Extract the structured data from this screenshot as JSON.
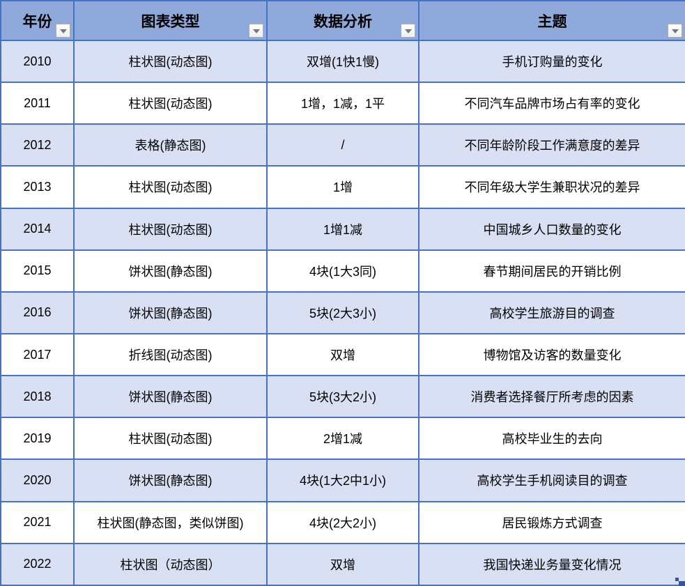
{
  "table": {
    "columns": [
      {
        "label": "年份"
      },
      {
        "label": "图表类型"
      },
      {
        "label": "数据分析"
      },
      {
        "label": "主题"
      }
    ],
    "rows": [
      {
        "year": "2010",
        "chart_type": "柱状图(动态图)",
        "analysis": "双增(1快1慢)",
        "topic": "手机订购量的变化"
      },
      {
        "year": "2011",
        "chart_type": "柱状图(动态图)",
        "analysis": "1增，1减，1平",
        "topic": "不同汽车品牌市场占有率的变化"
      },
      {
        "year": "2012",
        "chart_type": "表格(静态图)",
        "analysis": "/",
        "topic": "不同年龄阶段工作满意度的差异"
      },
      {
        "year": "2013",
        "chart_type": "柱状图(动态图)",
        "analysis": "1增",
        "topic": "不同年级大学生兼职状况的差异"
      },
      {
        "year": "2014",
        "chart_type": "柱状图(动态图)",
        "analysis": "1增1减",
        "topic": "中国城乡人口数量的变化"
      },
      {
        "year": "2015",
        "chart_type": "饼状图(静态图)",
        "analysis": "4块(1大3同)",
        "topic": "春节期间居民的开销比例"
      },
      {
        "year": "2016",
        "chart_type": "饼状图(静态图)",
        "analysis": "5块(2大3小)",
        "topic": "高校学生旅游目的调查"
      },
      {
        "year": "2017",
        "chart_type": "折线图(动态图)",
        "analysis": "双增",
        "topic": "博物馆及访客的数量变化"
      },
      {
        "year": "2018",
        "chart_type": "饼状图(静态图)",
        "analysis": "5块(3大2小)",
        "topic": "消费者选择餐厅所考虑的因素"
      },
      {
        "year": "2019",
        "chart_type": "柱状图(动态图)",
        "analysis": "2增1减",
        "topic": "高校毕业生的去向"
      },
      {
        "year": "2020",
        "chart_type": "饼状图(静态图)",
        "analysis": "4块(1大2中1小)",
        "topic": "高校学生手机阅读目的调查"
      },
      {
        "year": "2021",
        "chart_type": "柱状图(静态图，类似饼图)",
        "analysis": "4块(2大2小)",
        "topic": "居民锻炼方式调查"
      },
      {
        "year": "2022",
        "chart_type": "柱状图（动态图）",
        "analysis": "双增",
        "topic": "我国快递业务量变化情况"
      }
    ]
  },
  "icons": {
    "filter_dropdown": "chevron-down"
  },
  "colors": {
    "header_bg": "#8fa9db",
    "band_bg": "#dae0f3",
    "plain_bg": "#ffffff",
    "border": "#4472c4",
    "handle": "#35559e",
    "text": "#000000"
  }
}
